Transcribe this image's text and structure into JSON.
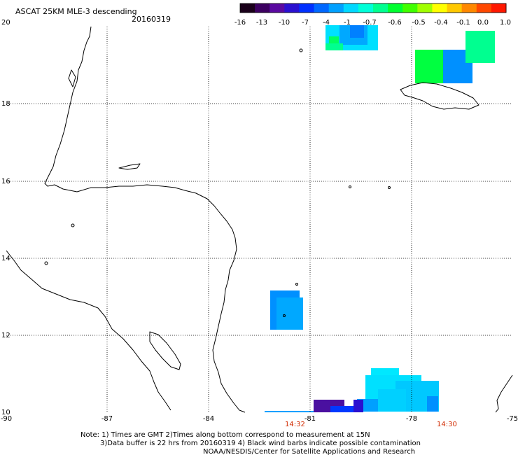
{
  "header": {
    "product": "ASCAT 25KM MLE-3 descending",
    "date": "20160319"
  },
  "colorbar": {
    "colors": [
      "#1a001a",
      "#3c0060",
      "#5a0aa0",
      "#2a10d0",
      "#0030ff",
      "#0068ff",
      "#00a0ff",
      "#00d8ff",
      "#00ffd8",
      "#00ff90",
      "#00ff30",
      "#40ff00",
      "#a0ff00",
      "#ffff00",
      "#ffc800",
      "#ff8800",
      "#ff4800",
      "#ff1800"
    ],
    "ticks": [
      "-16",
      "-13",
      "-10",
      "-7",
      "-4",
      "-1",
      "-0.7",
      "-0.6",
      "-0.5",
      "-0.4",
      "-0.1",
      "0.0",
      "1.0"
    ]
  },
  "axes": {
    "lon_labels": [
      "-90",
      "-87",
      "-84",
      "-81",
      "-78",
      "-75"
    ],
    "lat_labels": [
      "20",
      "18",
      "16",
      "14",
      "12",
      "10"
    ],
    "time_labels": [
      "14:32",
      "14:30"
    ]
  },
  "notes": [
    "Note: 1) Times are GMT 2)Times along bottom correspond to measurement at 15N",
    "3)Data buffer is 22 hrs from 20160319 4) Black wind barbs indicate possible contamination",
    "NOAA/NESDIS/Center for Satellite Applications and Research"
  ],
  "swaths": [
    {
      "name": "north-swath",
      "lon": -80.8,
      "lat": 19.8,
      "color": "#00d8ff"
    },
    {
      "name": "jamaica-east-swath",
      "lon": -77.2,
      "lat": 19.2,
      "color": "#00ff90"
    },
    {
      "name": "central-swath",
      "lon": -80.6,
      "lat": 12.5,
      "color": "#0090ff"
    },
    {
      "name": "south-swath",
      "lon": -78.8,
      "lat": 10.4,
      "color": "#00e8ff"
    }
  ]
}
